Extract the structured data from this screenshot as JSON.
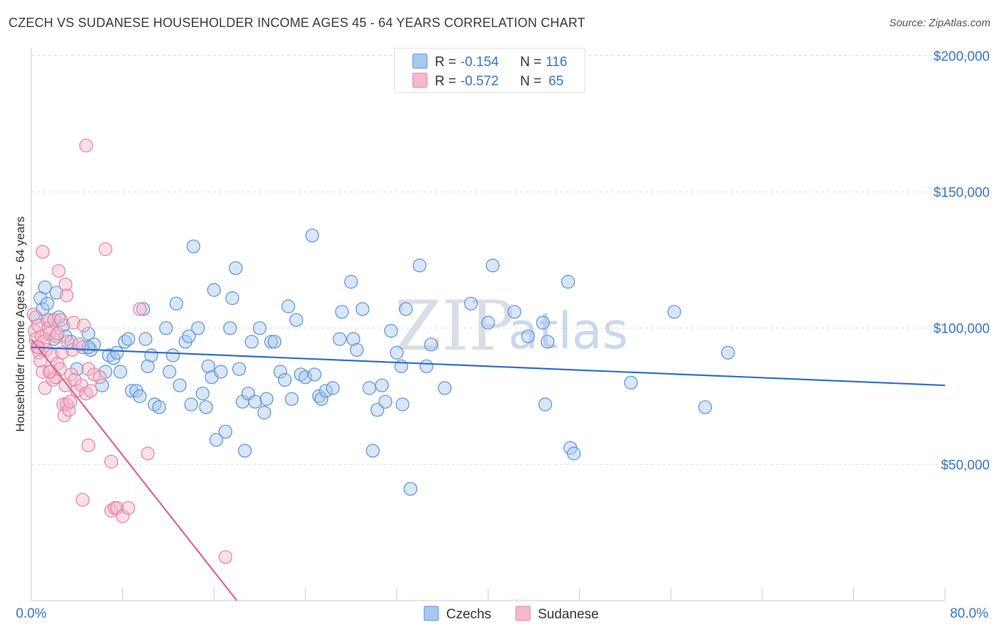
{
  "header": {
    "title": "CZECH VS SUDANESE HOUSEHOLDER INCOME AGES 45 - 64 YEARS CORRELATION CHART",
    "source": "Source: ZipAtlas.com"
  },
  "legend": {
    "rows": [
      {
        "r_label": "R =",
        "r_value": "-0.154",
        "n_label": "N =",
        "n_value": "116"
      },
      {
        "r_label": "R =",
        "r_value": "-0.572",
        "n_label": "N =",
        "n_value": "65"
      }
    ]
  },
  "bottom_legend": [
    "Czechs",
    "Sudanese"
  ],
  "watermark": {
    "zip": "ZIP",
    "atlas": "atlas"
  },
  "colors": {
    "czech_fill": "#a9c8f0",
    "czech_stroke": "#5b8fd6",
    "czech_line": "#2f6fce",
    "sudanese_fill": "#f6b8cc",
    "sudanese_stroke": "#e47fa2",
    "sudanese_line": "#e0628e",
    "tick_text": "#3b74c7",
    "grid": "#dddddd"
  },
  "chart_data": {
    "type": "scatter",
    "title": "CZECH VS SUDANESE HOUSEHOLDER INCOME AGES 45 - 64 YEARS CORRELATION CHART",
    "xlabel": "",
    "ylabel": "Householder Income Ages 45 - 64 years",
    "xlim": [
      0,
      80
    ],
    "ylim": [
      0,
      210000
    ],
    "x_tick_labels": [
      "0.0%",
      "80.0%"
    ],
    "y_ticks": [
      50000,
      100000,
      150000,
      200000
    ],
    "y_tick_labels": [
      "$50,000",
      "$100,000",
      "$150,000",
      "$200,000"
    ],
    "grid": true,
    "legend_position": "top-center",
    "series": [
      {
        "name": "Czechs",
        "R": -0.154,
        "N": 116,
        "trend": {
          "x": [
            0,
            80
          ],
          "y": [
            93000,
            79000
          ]
        },
        "points": [
          [
            0.4,
            104000
          ],
          [
            0.8,
            111000
          ],
          [
            1.0,
            107000
          ],
          [
            1.2,
            115000
          ],
          [
            1.4,
            109000
          ],
          [
            1.6,
            103000
          ],
          [
            2.0,
            96000
          ],
          [
            2.2,
            113000
          ],
          [
            2.8,
            101000
          ],
          [
            3.0,
            97000
          ],
          [
            3.5,
            95000
          ],
          [
            4.0,
            85000
          ],
          [
            4.5,
            93000
          ],
          [
            5.0,
            98000
          ],
          [
            5.2,
            92000
          ],
          [
            5.5,
            94000
          ],
          [
            6.2,
            79000
          ],
          [
            6.5,
            84000
          ],
          [
            6.8,
            90000
          ],
          [
            7.2,
            89000
          ],
          [
            7.5,
            91000
          ],
          [
            7.8,
            84000
          ],
          [
            8.2,
            95000
          ],
          [
            8.5,
            96000
          ],
          [
            8.8,
            77000
          ],
          [
            9.2,
            77000
          ],
          [
            9.5,
            75000
          ],
          [
            9.8,
            107000
          ],
          [
            10.0,
            96000
          ],
          [
            10.2,
            86000
          ],
          [
            10.5,
            90000
          ],
          [
            10.8,
            72000
          ],
          [
            11.2,
            71000
          ],
          [
            11.8,
            100000
          ],
          [
            12.1,
            84000
          ],
          [
            12.4,
            90000
          ],
          [
            12.7,
            109000
          ],
          [
            13.0,
            79000
          ],
          [
            13.5,
            95000
          ],
          [
            13.8,
            97000
          ],
          [
            14.0,
            72000
          ],
          [
            14.2,
            130000
          ],
          [
            14.6,
            100000
          ],
          [
            15.0,
            76000
          ],
          [
            15.3,
            71000
          ],
          [
            15.5,
            86000
          ],
          [
            15.8,
            82000
          ],
          [
            16.0,
            114000
          ],
          [
            16.2,
            59000
          ],
          [
            16.6,
            84000
          ],
          [
            17.0,
            62000
          ],
          [
            17.4,
            100000
          ],
          [
            17.6,
            111000
          ],
          [
            17.9,
            122000
          ],
          [
            18.2,
            85000
          ],
          [
            18.5,
            73000
          ],
          [
            18.7,
            55000
          ],
          [
            19.0,
            76000
          ],
          [
            19.3,
            95000
          ],
          [
            19.6,
            73000
          ],
          [
            20.0,
            100000
          ],
          [
            20.4,
            69000
          ],
          [
            20.6,
            74000
          ],
          [
            21.0,
            95000
          ],
          [
            21.3,
            95000
          ],
          [
            21.8,
            84000
          ],
          [
            22.2,
            81000
          ],
          [
            22.5,
            108000
          ],
          [
            22.8,
            74000
          ],
          [
            23.2,
            103000
          ],
          [
            23.6,
            83000
          ],
          [
            24.0,
            82000
          ],
          [
            24.6,
            134000
          ],
          [
            24.8,
            83000
          ],
          [
            25.2,
            75000
          ],
          [
            25.4,
            74000
          ],
          [
            25.8,
            77000
          ],
          [
            26.4,
            78000
          ],
          [
            27.0,
            96000
          ],
          [
            27.2,
            106000
          ],
          [
            28.0,
            117000
          ],
          [
            28.2,
            96000
          ],
          [
            28.5,
            92000
          ],
          [
            29.0,
            107000
          ],
          [
            29.6,
            78000
          ],
          [
            29.9,
            55000
          ],
          [
            30.3,
            70000
          ],
          [
            30.7,
            79000
          ],
          [
            31.0,
            73000
          ],
          [
            31.5,
            99000
          ],
          [
            32.0,
            91000
          ],
          [
            32.4,
            86000
          ],
          [
            32.5,
            72000
          ],
          [
            32.8,
            107000
          ],
          [
            33.2,
            41000
          ],
          [
            34.6,
            86000
          ],
          [
            35.0,
            94000
          ],
          [
            36.2,
            78000
          ],
          [
            38.5,
            109000
          ],
          [
            40.0,
            102000
          ],
          [
            40.4,
            123000
          ],
          [
            42.3,
            106000
          ],
          [
            43.5,
            97000
          ],
          [
            44.8,
            102000
          ],
          [
            45.0,
            72000
          ],
          [
            45.2,
            95000
          ],
          [
            47.0,
            117000
          ],
          [
            47.2,
            56000
          ],
          [
            47.5,
            54000
          ],
          [
            52.5,
            80000
          ],
          [
            56.3,
            106000
          ],
          [
            59.0,
            71000
          ],
          [
            61.0,
            91000
          ],
          [
            2.4,
            104000
          ],
          [
            5.0,
            93000
          ],
          [
            34.0,
            123000
          ]
        ]
      },
      {
        "name": "Sudanese",
        "R": -0.572,
        "N": 65,
        "trend": {
          "x": [
            0,
            18
          ],
          "y": [
            96000,
            0
          ]
        },
        "points": [
          [
            0.2,
            105000
          ],
          [
            0.3,
            99000
          ],
          [
            0.4,
            96000
          ],
          [
            0.5,
            93000
          ],
          [
            0.6,
            101000
          ],
          [
            0.7,
            91000
          ],
          [
            0.8,
            88000
          ],
          [
            0.9,
            97000
          ],
          [
            1.0,
            84000
          ],
          [
            1.1,
            95000
          ],
          [
            1.2,
            78000
          ],
          [
            1.3,
            92000
          ],
          [
            1.4,
            103000
          ],
          [
            1.5,
            100000
          ],
          [
            1.6,
            98000
          ],
          [
            1.7,
            84000
          ],
          [
            1.8,
            90000
          ],
          [
            1.9,
            81000
          ],
          [
            2.0,
            103000
          ],
          [
            2.1,
            82000
          ],
          [
            2.2,
            97000
          ],
          [
            2.3,
            87000
          ],
          [
            2.4,
            121000
          ],
          [
            2.5,
            85000
          ],
          [
            2.6,
            103000
          ],
          [
            2.7,
            91000
          ],
          [
            2.8,
            72000
          ],
          [
            2.9,
            68000
          ],
          [
            3.0,
            79000
          ],
          [
            3.1,
            72000
          ],
          [
            3.2,
            95000
          ],
          [
            3.3,
            70000
          ],
          [
            3.4,
            73000
          ],
          [
            3.5,
            83000
          ],
          [
            3.6,
            92000
          ],
          [
            3.7,
            102000
          ],
          [
            3.8,
            81000
          ],
          [
            4.0,
            77000
          ],
          [
            4.2,
            94000
          ],
          [
            4.4,
            79000
          ],
          [
            4.6,
            101000
          ],
          [
            4.8,
            76000
          ],
          [
            5.0,
            85000
          ],
          [
            5.2,
            77000
          ],
          [
            3.0,
            116000
          ],
          [
            1.0,
            128000
          ],
          [
            3.1,
            112000
          ],
          [
            4.8,
            167000
          ],
          [
            4.5,
            37000
          ],
          [
            5.0,
            57000
          ],
          [
            5.5,
            83000
          ],
          [
            6.0,
            82000
          ],
          [
            6.5,
            129000
          ],
          [
            7.0,
            51000
          ],
          [
            7.0,
            33000
          ],
          [
            7.3,
            34000
          ],
          [
            7.5,
            34000
          ],
          [
            8.0,
            31000
          ],
          [
            8.5,
            34000
          ],
          [
            9.5,
            107000
          ],
          [
            10.2,
            54000
          ],
          [
            17.0,
            16000
          ],
          [
            0.6,
            93000
          ],
          [
            1.6,
            84000
          ],
          [
            2.3,
            98000
          ]
        ]
      }
    ]
  }
}
